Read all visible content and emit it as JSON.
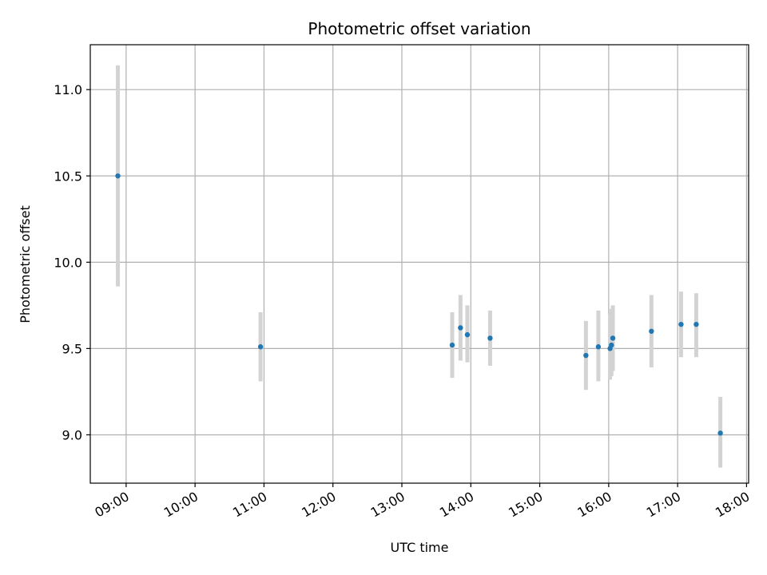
{
  "chart_data": {
    "type": "scatter",
    "title": "Photometric offset variation",
    "xlabel": "UTC time",
    "ylabel": "Photometric offset",
    "x_unit": "hours UTC",
    "xlim": [
      8.48,
      18.03
    ],
    "ylim": [
      8.72,
      11.26
    ],
    "xticks": [
      {
        "value": 9,
        "label": "09:00"
      },
      {
        "value": 10,
        "label": "10:00"
      },
      {
        "value": 11,
        "label": "11:00"
      },
      {
        "value": 12,
        "label": "12:00"
      },
      {
        "value": 13,
        "label": "13:00"
      },
      {
        "value": 14,
        "label": "14:00"
      },
      {
        "value": 15,
        "label": "15:00"
      },
      {
        "value": 16,
        "label": "16:00"
      },
      {
        "value": 17,
        "label": "17:00"
      },
      {
        "value": 18,
        "label": "18:00"
      }
    ],
    "yticks": [
      {
        "value": 9.0,
        "label": "9.0"
      },
      {
        "value": 9.5,
        "label": "9.5"
      },
      {
        "value": 10.0,
        "label": "10.0"
      },
      {
        "value": 10.5,
        "label": "10.5"
      },
      {
        "value": 11.0,
        "label": "11.0"
      }
    ],
    "grid": true,
    "point_color": "#1f77b4",
    "errorbar_color": "#d3d3d3",
    "points": [
      {
        "x": 8.88,
        "y": 10.5,
        "yerr_low": 9.86,
        "yerr_high": 11.14
      },
      {
        "x": 10.95,
        "y": 9.51,
        "yerr_low": 9.31,
        "yerr_high": 9.71
      },
      {
        "x": 13.73,
        "y": 9.52,
        "yerr_low": 9.33,
        "yerr_high": 9.71
      },
      {
        "x": 13.85,
        "y": 9.62,
        "yerr_low": 9.43,
        "yerr_high": 9.81
      },
      {
        "x": 13.95,
        "y": 9.58,
        "yerr_low": 9.42,
        "yerr_high": 9.75
      },
      {
        "x": 14.28,
        "y": 9.56,
        "yerr_low": 9.4,
        "yerr_high": 9.72
      },
      {
        "x": 15.67,
        "y": 9.46,
        "yerr_low": 9.26,
        "yerr_high": 9.66
      },
      {
        "x": 15.85,
        "y": 9.51,
        "yerr_low": 9.31,
        "yerr_high": 9.72
      },
      {
        "x": 16.02,
        "y": 9.5,
        "yerr_low": 9.32,
        "yerr_high": 9.7
      },
      {
        "x": 16.04,
        "y": 9.52,
        "yerr_low": 9.34,
        "yerr_high": 9.73
      },
      {
        "x": 16.06,
        "y": 9.56,
        "yerr_low": 9.37,
        "yerr_high": 9.75
      },
      {
        "x": 16.62,
        "y": 9.6,
        "yerr_low": 9.39,
        "yerr_high": 9.81
      },
      {
        "x": 17.05,
        "y": 9.64,
        "yerr_low": 9.45,
        "yerr_high": 9.83
      },
      {
        "x": 17.27,
        "y": 9.64,
        "yerr_low": 9.45,
        "yerr_high": 9.82
      },
      {
        "x": 17.62,
        "y": 9.01,
        "yerr_low": 8.81,
        "yerr_high": 9.22
      }
    ]
  }
}
